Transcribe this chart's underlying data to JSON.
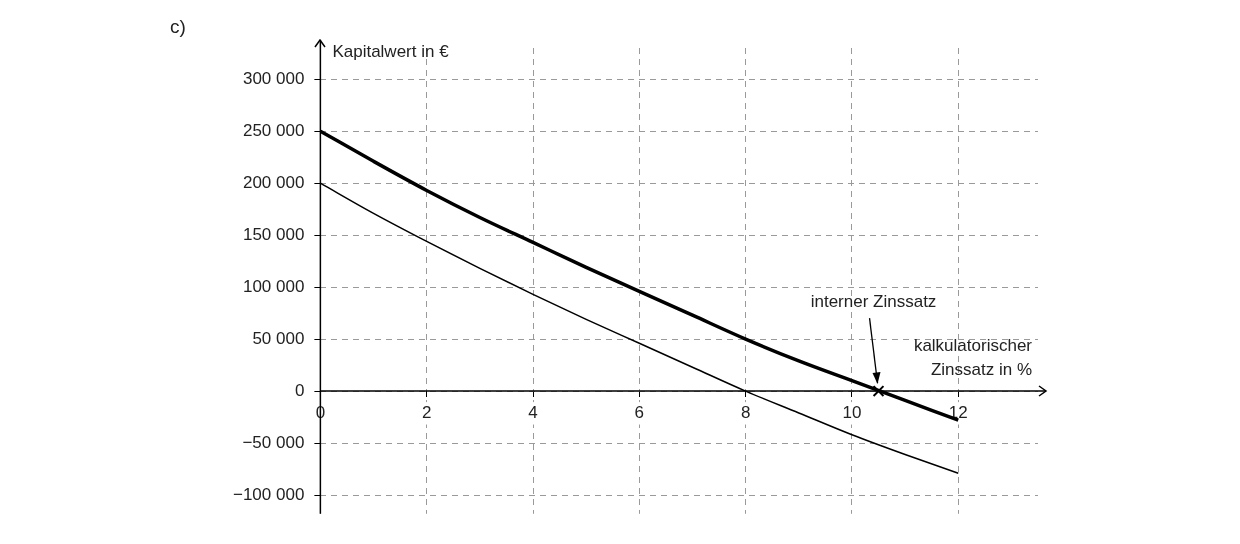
{
  "chart_data": {
    "type": "line",
    "title": "c)",
    "xlabel": "kalkulatorischer Zinssatz in %",
    "ylabel": "Kapitalwert in €",
    "x": [
      0,
      1,
      2,
      3,
      4,
      5,
      6,
      7,
      8,
      9,
      10,
      11,
      12
    ],
    "series": [
      {
        "color": "#000000",
        "values": [
          250000,
          221000,
          193000,
          167000,
          143000,
          119000,
          96000,
          73000,
          50000,
          29000,
          10000,
          -9000,
          -28000
        ]
      },
      {
        "color": "#000000",
        "values": [
          200000,
          171000,
          144000,
          118000,
          93000,
          69000,
          46000,
          23000,
          0,
          -21000,
          -42000,
          -61000,
          -79000
        ]
      },
      {
        "type": "scatter",
        "color": "#000000",
        "marker": "cross",
        "x": [
          10.5
        ],
        "values": [
          0
        ]
      }
    ],
    "annotations": [
      {
        "text": "interner Zinssatz",
        "x": 10.5,
        "y": 0
      }
    ],
    "xlim": [
      0,
      13.5
    ],
    "ylim": [
      -118000,
      330000
    ],
    "xticks": [
      0,
      2,
      4,
      6,
      8,
      10,
      12
    ],
    "yticks": [
      {
        "value": 300000,
        "label": "300 000"
      },
      {
        "value": 250000,
        "label": "250 000"
      },
      {
        "value": 200000,
        "label": "200 000"
      },
      {
        "value": 150000,
        "label": "150 000"
      },
      {
        "value": 100000,
        "label": "100 000"
      },
      {
        "value": 50000,
        "label": "50 000"
      },
      0,
      {
        "value": -50000,
        "label": "−50 000"
      },
      {
        "value": -100000,
        "label": "−100 000"
      }
    ],
    "grid": true,
    "legend": false,
    "marker": "none",
    "line_style": "solid"
  }
}
